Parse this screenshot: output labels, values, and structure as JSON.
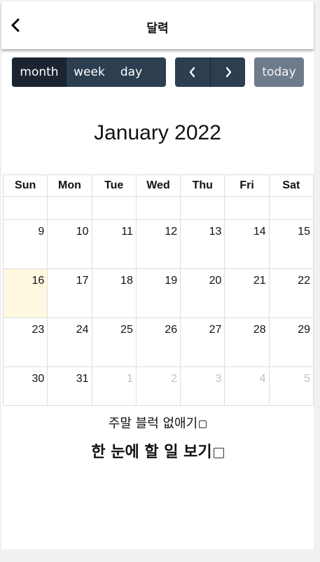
{
  "header": {
    "title": "달력",
    "back_icon": "chevron-left-icon"
  },
  "toolbar": {
    "views": [
      "month",
      "week",
      "day"
    ],
    "active_view": "month",
    "prev_icon": "chevron-left-icon",
    "next_icon": "chevron-right-icon",
    "today_label": "today"
  },
  "calendar": {
    "title": "January 2022",
    "weekdays": [
      "Sun",
      "Mon",
      "Tue",
      "Wed",
      "Thu",
      "Fri",
      "Sat"
    ],
    "weeks": [
      [
        "",
        "",
        "",
        "",
        "",
        "",
        ""
      ],
      [
        "9",
        "10",
        "11",
        "12",
        "13",
        "14",
        "15"
      ],
      [
        "16",
        "17",
        "18",
        "19",
        "20",
        "21",
        "22"
      ],
      [
        "23",
        "24",
        "25",
        "26",
        "27",
        "28",
        "29"
      ],
      [
        "30",
        "31",
        "1",
        "2",
        "3",
        "4",
        "5"
      ]
    ],
    "highlight_day": "16"
  },
  "options": {
    "hide_weekend_label": "주말 블럭 없애기",
    "overview_label": "한 눈에 할 일 보기"
  },
  "colors": {
    "toolbar": "#2c3e50",
    "toolbar_active": "#1a252f",
    "today_button": "#6e7b8a",
    "highlight": "#fff8e1",
    "muted_day": "#c0c0c0"
  }
}
